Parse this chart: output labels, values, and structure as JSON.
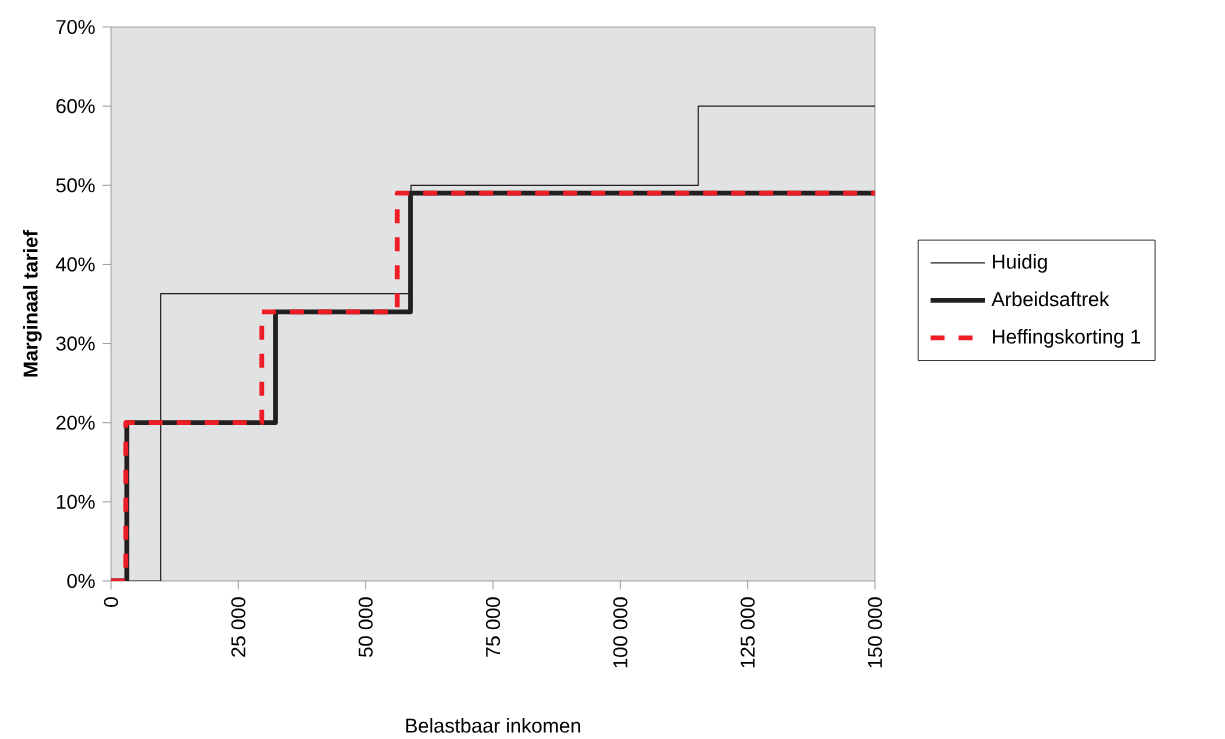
{
  "chart_data": {
    "type": "step",
    "xlabel": "Belastbaar inkomen",
    "ylabel": "Marginaal tarief",
    "series": [
      {
        "name": "Huidig",
        "color": "#231f20",
        "line_style": "solid",
        "x": [
          0,
          9750,
          58900,
          115300,
          150000
        ],
        "values": [
          0,
          36.3,
          50,
          60,
          60
        ]
      },
      {
        "name": "Arbeidsaftrek",
        "color": "#231f20",
        "line_style": "solid",
        "x": [
          0,
          3100,
          32300,
          58800,
          150000
        ],
        "values": [
          0,
          20,
          34,
          49,
          49
        ]
      },
      {
        "name": "Heffingskorting 1",
        "color": "#ee1c25",
        "line_style": "dashed",
        "x": [
          0,
          2900,
          29600,
          56200,
          150000
        ],
        "values": [
          0,
          20,
          34,
          49,
          49
        ]
      }
    ],
    "xlim": [
      0,
      150000
    ],
    "ylim": [
      0,
      70
    ],
    "xticks": [
      0,
      {
        "value": 25000,
        "label": "25 000"
      },
      {
        "value": 50000,
        "label": "50 000"
      },
      {
        "value": 75000,
        "label": "75 000"
      },
      {
        "value": 100000,
        "label": "100 000"
      },
      {
        "value": 125000,
        "label": "125 000"
      },
      {
        "value": 150000,
        "label": "150 000"
      }
    ],
    "yticks": [
      {
        "value": 0,
        "label": "0%"
      },
      {
        "value": 10,
        "label": "10%"
      },
      {
        "value": 20,
        "label": "20%"
      },
      {
        "value": 30,
        "label": "30%"
      },
      {
        "value": 40,
        "label": "40%"
      },
      {
        "value": 50,
        "label": "50%"
      },
      {
        "value": 60,
        "label": "60%"
      },
      {
        "value": 70,
        "label": "70%"
      }
    ],
    "grid": false,
    "legend": "right",
    "marker": "none"
  }
}
